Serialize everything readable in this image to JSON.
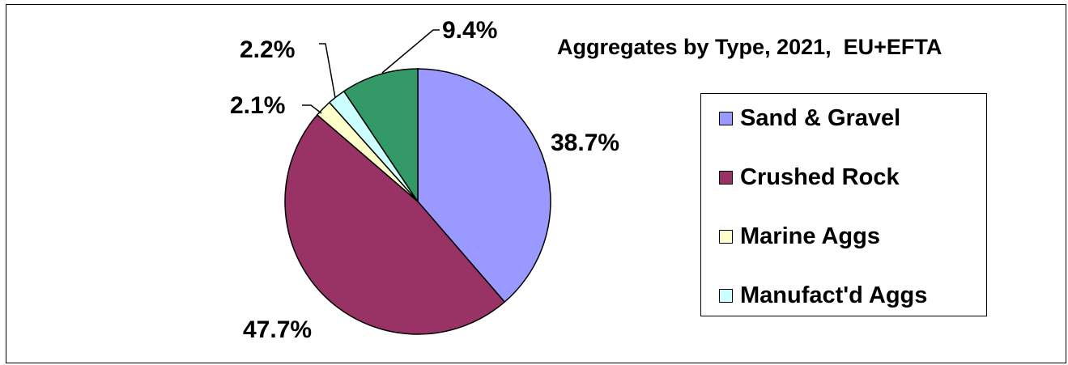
{
  "chart_data": {
    "type": "pie",
    "title": "Aggregates by Type, 2021,  EU+EFTA",
    "slices": [
      {
        "name": "Sand & Gravel",
        "value": 38.7,
        "label": "38.7%",
        "color": "#9999ff"
      },
      {
        "name": "Crushed Rock",
        "value": 47.7,
        "label": "47.7%",
        "color": "#993366"
      },
      {
        "name": "Marine Aggs",
        "value": 2.1,
        "label": "2.1%",
        "color": "#ffffcc"
      },
      {
        "name": "Manufact'd Aggs",
        "value": 2.2,
        "label": "2.2%",
        "color": "#ccffff"
      },
      {
        "name": "",
        "value": 9.4,
        "label": "9.4%",
        "color": "#339966"
      }
    ],
    "legend": {
      "placement": "right",
      "entries": [
        "Sand & Gravel",
        "Crushed Rock",
        "Marine Aggs",
        "Manufact'd Aggs"
      ]
    }
  }
}
